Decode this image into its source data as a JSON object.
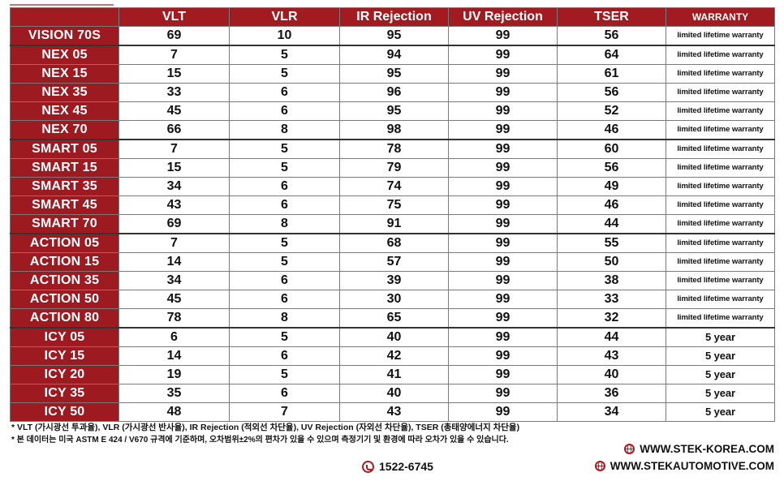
{
  "table": {
    "headers": {
      "model": "",
      "vlt": "VLT",
      "vlr": "VLR",
      "ir": "IR Rejection",
      "uv": "UV Rejection",
      "tser": "TSER",
      "warranty": "WARRANTY"
    },
    "rows": [
      {
        "model": "VISION 70S",
        "vlt": "69",
        "vlr": "10",
        "ir": "95",
        "uv": "99",
        "tser": "56",
        "warranty": "limited lifetime warranty"
      },
      {
        "model": "NEX 05",
        "vlt": "7",
        "vlr": "5",
        "ir": "94",
        "uv": "99",
        "tser": "64",
        "warranty": "limited lifetime warranty"
      },
      {
        "model": "NEX 15",
        "vlt": "15",
        "vlr": "5",
        "ir": "95",
        "uv": "99",
        "tser": "61",
        "warranty": "limited lifetime warranty"
      },
      {
        "model": "NEX 35",
        "vlt": "33",
        "vlr": "6",
        "ir": "96",
        "uv": "99",
        "tser": "56",
        "warranty": "limited lifetime warranty"
      },
      {
        "model": "NEX 45",
        "vlt": "45",
        "vlr": "6",
        "ir": "95",
        "uv": "99",
        "tser": "52",
        "warranty": "limited lifetime warranty"
      },
      {
        "model": "NEX 70",
        "vlt": "66",
        "vlr": "8",
        "ir": "98",
        "uv": "99",
        "tser": "46",
        "warranty": "limited lifetime warranty"
      },
      {
        "model": "SMART 05",
        "vlt": "7",
        "vlr": "5",
        "ir": "78",
        "uv": "99",
        "tser": "60",
        "warranty": "limited lifetime warranty"
      },
      {
        "model": "SMART 15",
        "vlt": "15",
        "vlr": "5",
        "ir": "79",
        "uv": "99",
        "tser": "56",
        "warranty": "limited lifetime warranty"
      },
      {
        "model": "SMART 35",
        "vlt": "34",
        "vlr": "6",
        "ir": "74",
        "uv": "99",
        "tser": "49",
        "warranty": "limited lifetime warranty"
      },
      {
        "model": "SMART 45",
        "vlt": "43",
        "vlr": "6",
        "ir": "75",
        "uv": "99",
        "tser": "46",
        "warranty": "limited lifetime warranty"
      },
      {
        "model": "SMART 70",
        "vlt": "69",
        "vlr": "8",
        "ir": "91",
        "uv": "99",
        "tser": "44",
        "warranty": "limited lifetime warranty"
      },
      {
        "model": "ACTION 05",
        "vlt": "7",
        "vlr": "5",
        "ir": "68",
        "uv": "99",
        "tser": "55",
        "warranty": "limited lifetime warranty"
      },
      {
        "model": "ACTION 15",
        "vlt": "14",
        "vlr": "5",
        "ir": "57",
        "uv": "99",
        "tser": "50",
        "warranty": "limited lifetime warranty"
      },
      {
        "model": "ACTION 35",
        "vlt": "34",
        "vlr": "6",
        "ir": "39",
        "uv": "99",
        "tser": "38",
        "warranty": "limited lifetime warranty"
      },
      {
        "model": "ACTION 50",
        "vlt": "45",
        "vlr": "6",
        "ir": "30",
        "uv": "99",
        "tser": "33",
        "warranty": "limited lifetime warranty"
      },
      {
        "model": "ACTION 80",
        "vlt": "78",
        "vlr": "8",
        "ir": "65",
        "uv": "99",
        "tser": "32",
        "warranty": "limited lifetime warranty"
      },
      {
        "model": "ICY 05",
        "vlt": "6",
        "vlr": "5",
        "ir": "40",
        "uv": "99",
        "tser": "44",
        "warranty": "5 year"
      },
      {
        "model": "ICY 15",
        "vlt": "14",
        "vlr": "6",
        "ir": "42",
        "uv": "99",
        "tser": "43",
        "warranty": "5 year"
      },
      {
        "model": "ICY 20",
        "vlt": "19",
        "vlr": "5",
        "ir": "41",
        "uv": "99",
        "tser": "40",
        "warranty": "5 year"
      },
      {
        "model": "ICY 35",
        "vlt": "35",
        "vlr": "6",
        "ir": "40",
        "uv": "99",
        "tser": "36",
        "warranty": "5 year"
      },
      {
        "model": "ICY 50",
        "vlt": "48",
        "vlr": "7",
        "ir": "43",
        "uv": "99",
        "tser": "34",
        "warranty": "5 year"
      }
    ]
  },
  "notes": {
    "line1": "* VLT (가시광선 투과율), VLR (가시광선 반사율), IR Rejection (적외선 차단율), UV Rejection (자외선 차단율), TSER (총태양에너지 차단율)",
    "line2": "* 본 데이터는 미국 ASTM E 424 / V670 규격에 기준하며, 오차범위±2%의 편차가 있을 수 있으며 측정기기 및 환경에 따라 오차가 있을 수 있습니다."
  },
  "contact": {
    "website1": "WWW.STEK-KOREA.COM",
    "website2": "WWW.STEKAUTOMOTIVE.COM",
    "phone": "1522-6745"
  },
  "colors": {
    "brand_red": "#a11b21",
    "model_cell_red": "#9c1a20"
  }
}
